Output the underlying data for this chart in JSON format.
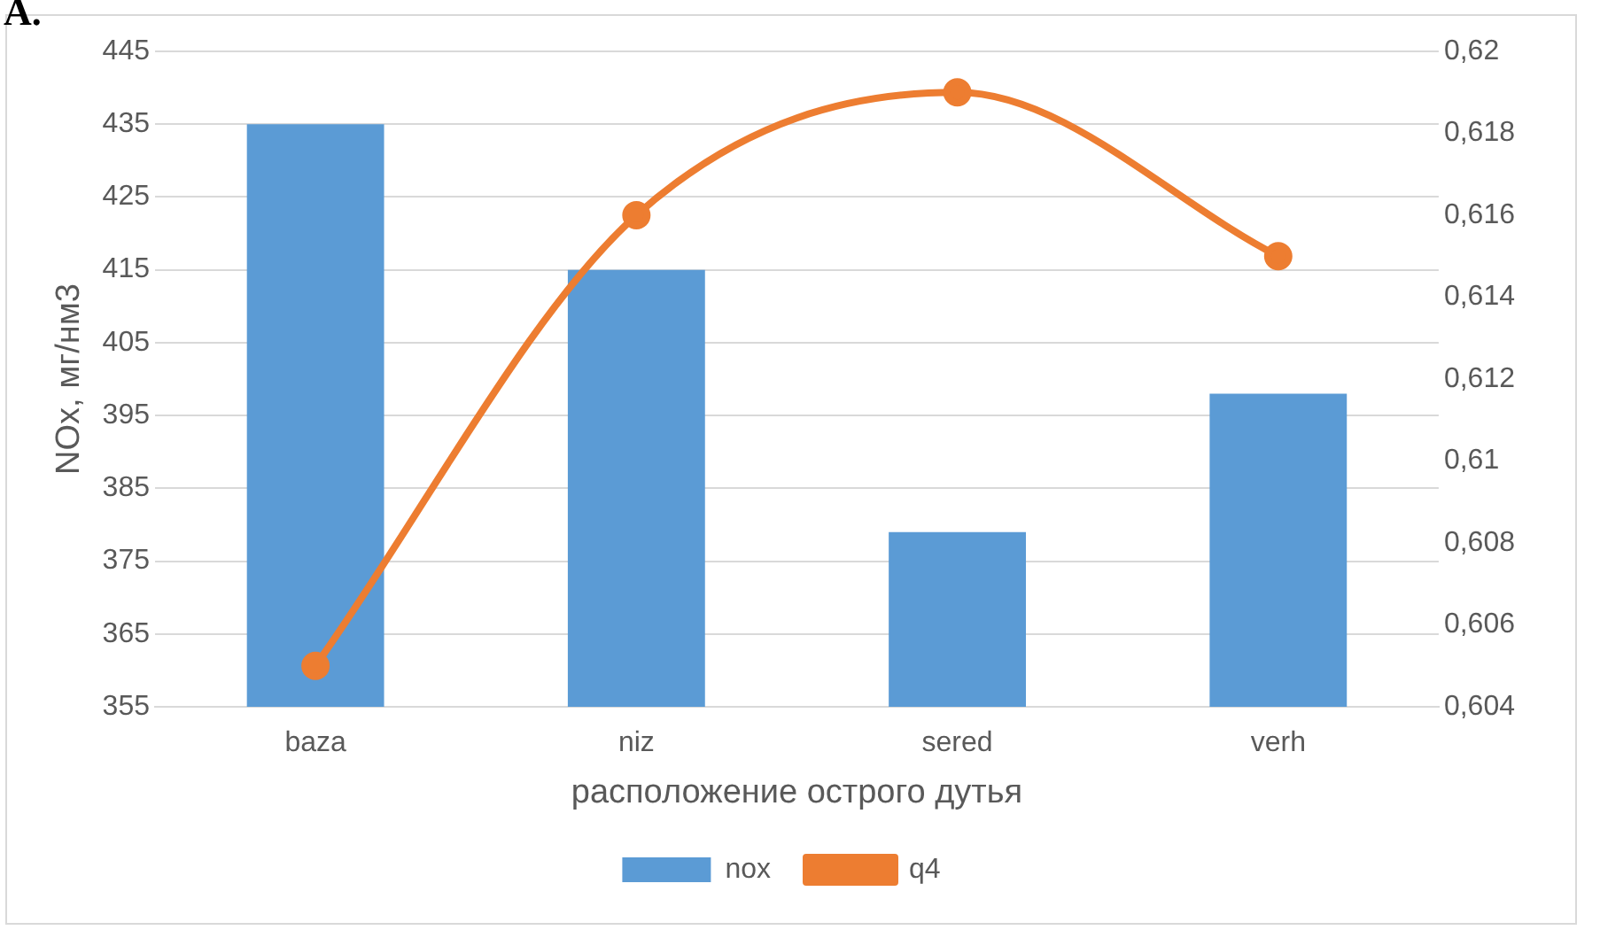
{
  "chart_data": {
    "type": "bar",
    "xlabel": "расположение острого дутья",
    "ylabel": "NOx, мг/нм3",
    "categories": [
      "baza",
      "niz",
      "sered",
      "verh"
    ],
    "series": [
      {
        "name": "nox",
        "color": "#5b9bd5",
        "values": [
          435,
          415,
          379,
          398
        ]
      },
      {
        "name": "q4",
        "type": "line",
        "axis": "y2",
        "color": "#ed7d31",
        "values": [
          0.605,
          0.616,
          0.619,
          0.615
        ],
        "marker": "circle"
      }
    ],
    "ylim": [
      355,
      445
    ],
    "yticks": [
      355,
      365,
      375,
      385,
      395,
      405,
      415,
      425,
      435,
      445
    ],
    "y2lim": [
      0.604,
      0.62
    ],
    "y2ticks": [
      {
        "value": 0.604,
        "label": "0,604"
      },
      {
        "value": 0.606,
        "label": "0,606"
      },
      {
        "value": 0.608,
        "label": "0,608"
      },
      {
        "value": 0.61,
        "label": "0,61"
      },
      {
        "value": 0.612,
        "label": "0,612"
      },
      {
        "value": 0.614,
        "label": "0,614"
      },
      {
        "value": 0.616,
        "label": "0,616"
      },
      {
        "value": 0.618,
        "label": "0,618"
      },
      {
        "value": 0.62,
        "label": "0,62"
      }
    ],
    "grid": "y",
    "legend": "bottom",
    "annotations": [
      "А."
    ]
  }
}
